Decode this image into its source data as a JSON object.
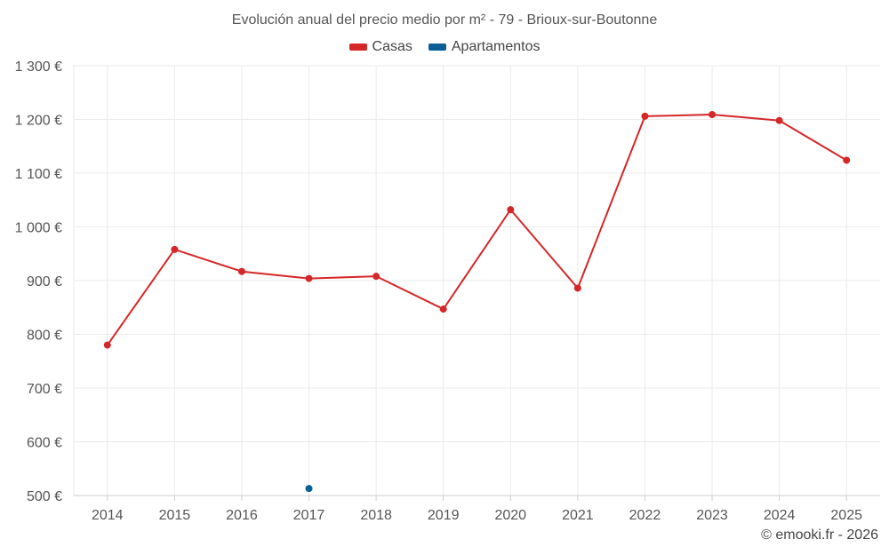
{
  "chart_data": {
    "type": "line",
    "title": "Evolución anual del precio medio por m² - 79 - Brioux-sur-Boutonne",
    "categories": [
      "2014",
      "2015",
      "2016",
      "2017",
      "2018",
      "2019",
      "2020",
      "2021",
      "2022",
      "2023",
      "2024",
      "2025"
    ],
    "series": [
      {
        "name": "Casas",
        "color": "#d62728",
        "values": [
          780,
          958,
          917,
          904,
          908,
          847,
          1032,
          886,
          1206,
          1209,
          1198,
          1124
        ]
      },
      {
        "name": "Apartamentos",
        "color": "#0a5f96",
        "values": [
          null,
          null,
          null,
          513,
          null,
          null,
          null,
          null,
          null,
          null,
          null,
          null
        ]
      }
    ],
    "ylim": [
      500,
      1300
    ],
    "yticks": [
      500,
      600,
      700,
      800,
      900,
      1000,
      1100,
      1200,
      1300
    ],
    "ytick_labels": [
      "500 €",
      "600 €",
      "700 €",
      "800 €",
      "900 €",
      "1 000 €",
      "1 100 €",
      "1 200 €",
      "1 300 €"
    ],
    "grid": true,
    "legend_position": "top-center"
  },
  "footer": {
    "credit": "© emooki.fr - 2026"
  }
}
